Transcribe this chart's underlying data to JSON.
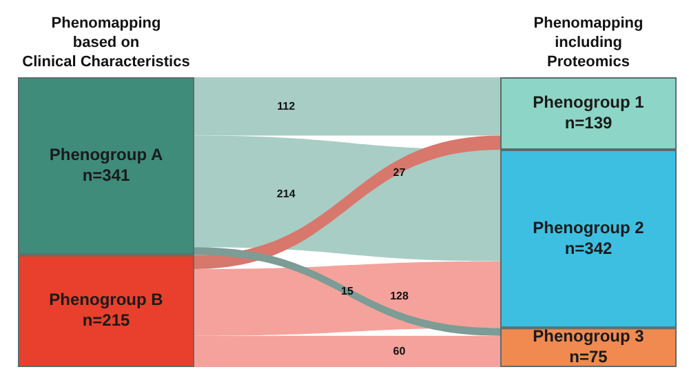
{
  "chart_data": {
    "type": "other",
    "annotations": [
      "Phenomapping\nbased on\nClinical Characteristics",
      "Phenomapping\nincluding\nProteomics"
    ],
    "categories": [
      "Phenogroup 1\nn=139",
      "Phenogroup 2\nn=342",
      "Phenogroup 3\nn=75"
    ],
    "colors": [
      "#8dd5c6",
      "#3dbfe2",
      "#f08a50"
    ],
    "series": [
      {
        "name": "Phenogroup A\nn=341",
        "color": "#3f8c7b",
        "colors": [
          "#a8cdc4",
          "#a8cdc4",
          "#7c9c95"
        ],
        "values": [
          112,
          214,
          15
        ]
      },
      {
        "name": "Phenogroup B\nn=215",
        "color": "#e8402c",
        "colors": [
          "#d8776c",
          "#f4a29b",
          "#f4a29b"
        ],
        "values": [
          27,
          128,
          60
        ]
      }
    ],
    "data_labels": true
  }
}
